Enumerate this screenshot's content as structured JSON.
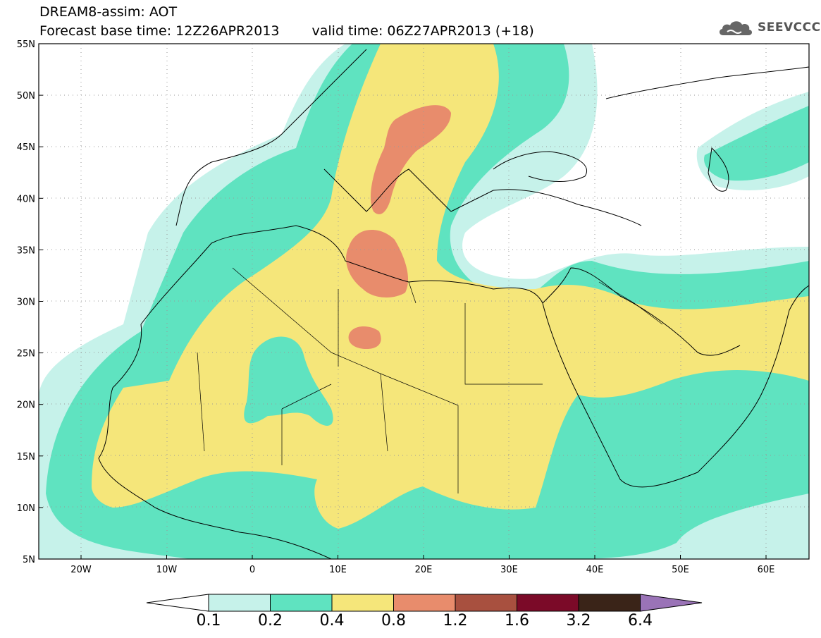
{
  "header": {
    "title": "DREAM8-assim: AOT",
    "base_time": "Forecast base time: 12Z26APR2013",
    "valid_time": "valid time: 06Z27APR2013 (+18)"
  },
  "logo": {
    "text": "SEEVCCC",
    "icon": "cloud-logo-icon"
  },
  "map": {
    "lat_labels": [
      "55N",
      "50N",
      "45N",
      "40N",
      "35N",
      "30N",
      "25N",
      "20N",
      "15N",
      "10N",
      "5N"
    ],
    "lon_labels": [
      "20W",
      "10W",
      "0",
      "10E",
      "20E",
      "30E",
      "40E",
      "50E",
      "60E"
    ]
  },
  "colorbar": {
    "labels": [
      "0.1",
      "0.2",
      "0.4",
      "0.8",
      "1.2",
      "1.6",
      "3.2",
      "6.4"
    ],
    "colors": [
      "#c6f2ea",
      "#5fe3c0",
      "#f5e67a",
      "#e88c6c",
      "#a8503f",
      "#7b0a28",
      "#3a2418",
      "#9a73b7"
    ],
    "under_color": "#ffffff"
  }
}
